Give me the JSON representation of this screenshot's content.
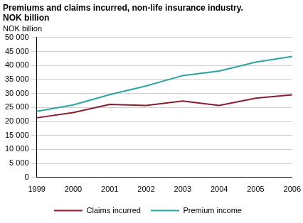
{
  "chart_data": {
    "type": "line",
    "title": [
      "Premiums and claims incurred, non-life insurance industry.",
      "NOK billion"
    ],
    "ylabel": "NOK billion",
    "categories": [
      "1999",
      "2000",
      "2001",
      "2002",
      "2003",
      "2004",
      "2005",
      "2006"
    ],
    "series": [
      {
        "name": "Claims incurred",
        "color": "#8c1c2c",
        "values": [
          21300,
          23200,
          26100,
          25700,
          27300,
          25700,
          28300,
          29500
        ]
      },
      {
        "name": "Premium income",
        "color": "#2aa3a5",
        "values": [
          23600,
          25900,
          29600,
          32700,
          36400,
          38000,
          41200,
          43200
        ]
      }
    ],
    "ylim": [
      0,
      50000
    ],
    "yticks": [
      0,
      {
        "value": 5000,
        "label": "5 000"
      },
      {
        "value": 10000,
        "label": "10 000"
      },
      {
        "value": 15000,
        "label": "15 000"
      },
      {
        "value": 20000,
        "label": "20 000"
      },
      {
        "value": 25000,
        "label": "25 000"
      },
      {
        "value": 30000,
        "label": "30 000"
      },
      {
        "value": 35000,
        "label": "35 000"
      },
      {
        "value": 40000,
        "label": "40 000"
      },
      {
        "value": 45000,
        "label": "45 000"
      },
      {
        "value": 50000,
        "label": "50 000"
      }
    ],
    "grid": true,
    "legend": "bottom"
  }
}
